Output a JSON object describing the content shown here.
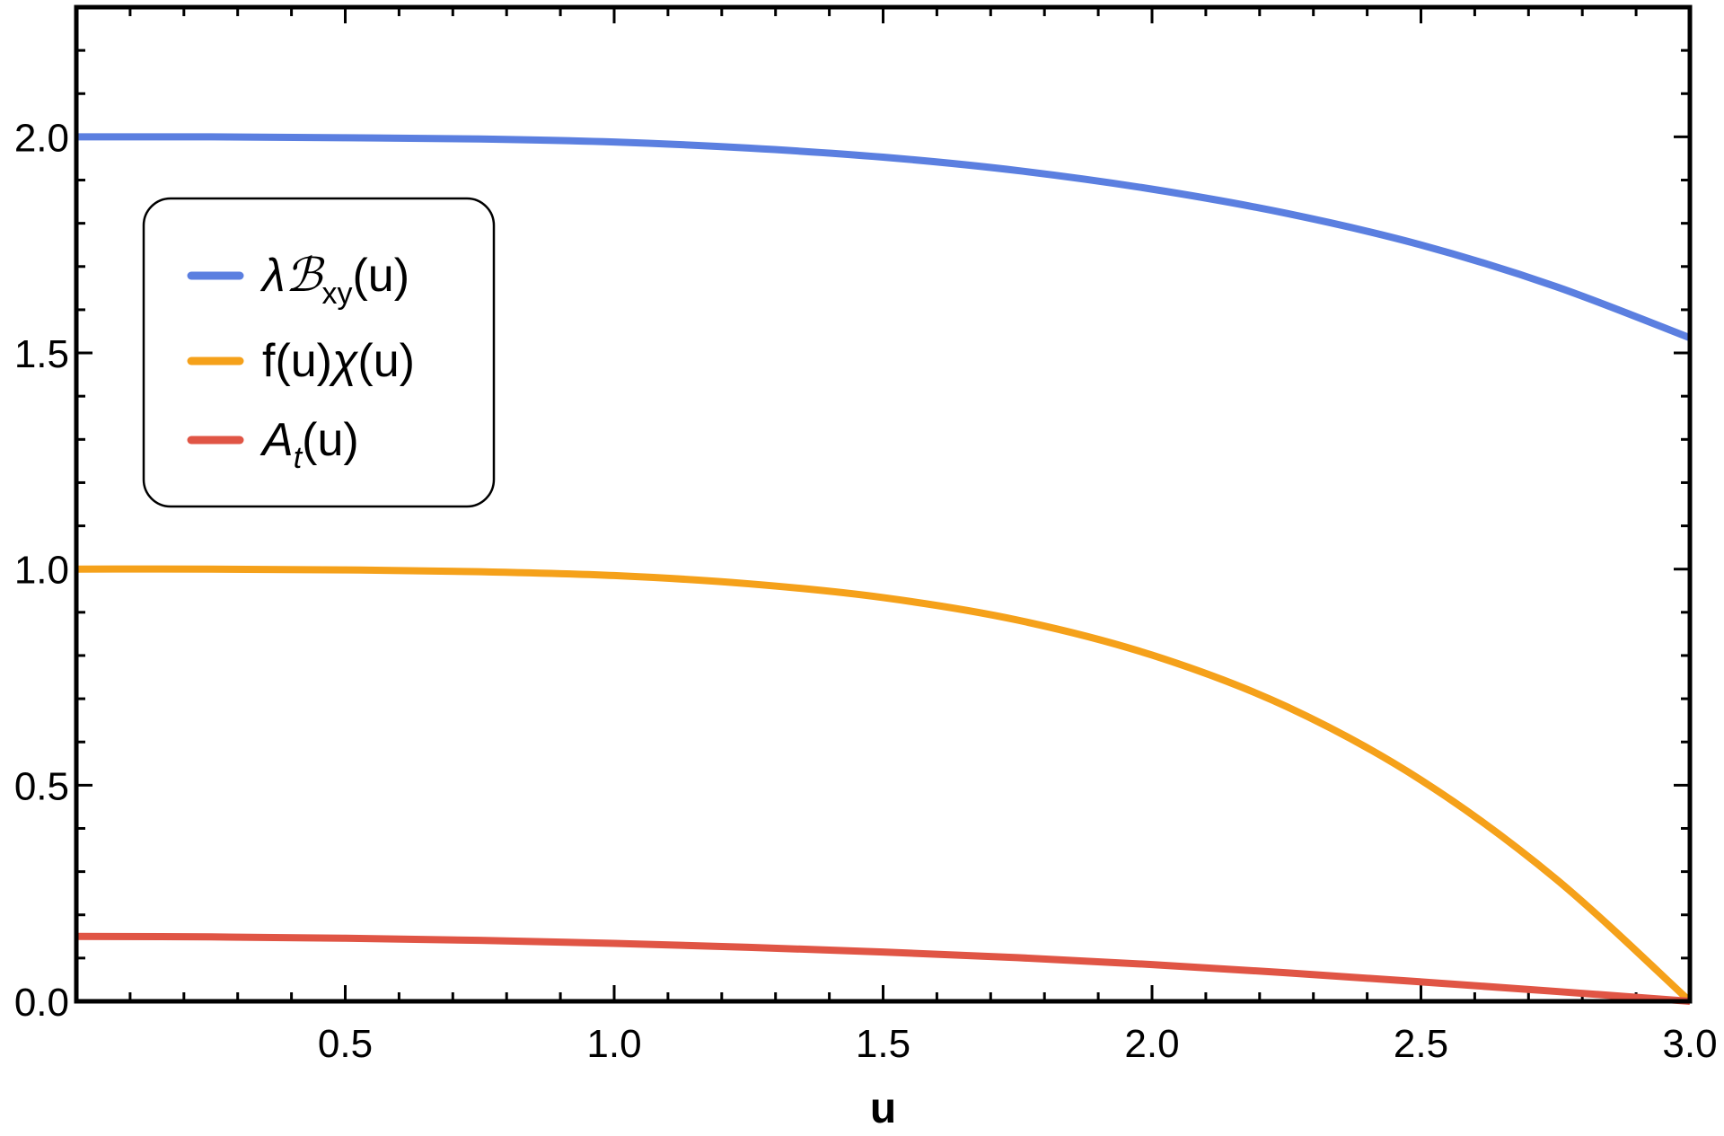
{
  "chart_data": {
    "type": "line",
    "title": "",
    "xlabel": "u",
    "ylabel": "",
    "xlim": [
      0,
      3.0
    ],
    "ylim": [
      0,
      2.3
    ],
    "xticks": [
      "0.5",
      "1.0",
      "1.5",
      "2.0",
      "2.5",
      "3.0"
    ],
    "yticks": [
      "0.0",
      "0.5",
      "1.0",
      "1.5",
      "2.0"
    ],
    "legend_position": "upper-left",
    "grid": false,
    "series": [
      {
        "name": "λℬxy(u)",
        "color": "#5b7fe0",
        "x": [
          0,
          0.25,
          0.5,
          0.75,
          1.0,
          1.25,
          1.5,
          1.75,
          2.0,
          2.25,
          2.5,
          2.75,
          3.0
        ],
        "y": [
          2.0,
          2.0,
          1.998,
          1.995,
          1.988,
          1.974,
          1.953,
          1.922,
          1.879,
          1.823,
          1.75,
          1.654,
          1.535
        ]
      },
      {
        "name": "f(u)χ(u)",
        "color": "#f5a11a",
        "x": [
          0,
          0.25,
          0.5,
          0.75,
          1.0,
          1.25,
          1.5,
          1.75,
          2.0,
          2.25,
          2.5,
          2.75,
          3.0
        ],
        "y": [
          1.0,
          1.0,
          0.998,
          0.994,
          0.985,
          0.966,
          0.934,
          0.882,
          0.801,
          0.682,
          0.512,
          0.284,
          0.0
        ]
      },
      {
        "name": "At(u)",
        "color": "#e05545",
        "x": [
          0,
          0.25,
          0.5,
          0.75,
          1.0,
          1.25,
          1.5,
          1.75,
          2.0,
          2.25,
          2.5,
          2.75,
          3.0
        ],
        "y": [
          0.15,
          0.149,
          0.146,
          0.141,
          0.134,
          0.125,
          0.114,
          0.101,
          0.085,
          0.066,
          0.045,
          0.023,
          0.0
        ]
      }
    ]
  },
  "legend": {
    "item1": {
      "prefix": "λℬ",
      "sub": "xy",
      "suffix": "(u)"
    },
    "item2": {
      "prefix": "f(u)",
      "italic": "χ",
      "suffix": "(u)"
    },
    "item3": {
      "prefix": "A",
      "sub": "t",
      "suffix": "(u)"
    }
  }
}
